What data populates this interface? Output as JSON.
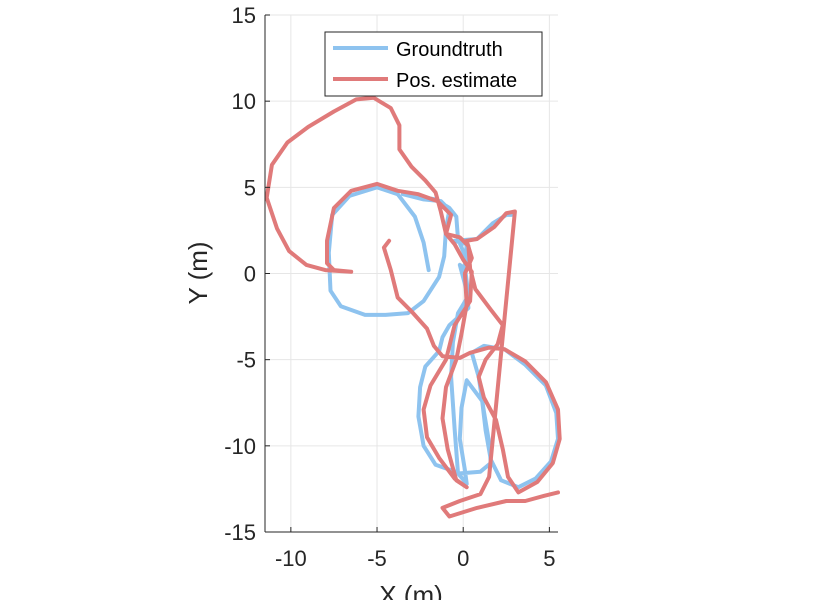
{
  "chart_data": {
    "type": "line",
    "xlabel": "X (m)",
    "ylabel": "Y (m)",
    "xlim": [
      -11.5,
      5.5
    ],
    "ylim": [
      -15,
      15
    ],
    "xticks": [
      -10,
      -5,
      0,
      5
    ],
    "yticks": [
      -15,
      -10,
      -5,
      0,
      5,
      10,
      15
    ],
    "grid": true,
    "legend_position": "top-right",
    "series": [
      {
        "name": "Groundtruth",
        "color": "#8ec3ef",
        "points": [
          [
            -2.0,
            0.2
          ],
          [
            -2.3,
            1.8
          ],
          [
            -2.8,
            3.3
          ],
          [
            -3.8,
            4.6
          ],
          [
            -5.0,
            5.0
          ],
          [
            -6.6,
            4.5
          ],
          [
            -7.6,
            3.4
          ],
          [
            -7.8,
            1.2
          ],
          [
            -7.7,
            -1.0
          ],
          [
            -7.1,
            -1.9
          ],
          [
            -5.7,
            -2.4
          ],
          [
            -4.5,
            -2.4
          ],
          [
            -3.2,
            -2.3
          ],
          [
            -2.3,
            -1.6
          ],
          [
            -1.4,
            -0.2
          ],
          [
            -1.1,
            1.0
          ],
          [
            -1.0,
            2.6
          ],
          [
            -0.8,
            3.7
          ],
          [
            -1.3,
            4.2
          ],
          [
            -2.3,
            4.3
          ],
          [
            -3.5,
            4.6
          ],
          [
            -1.6,
            4.3
          ],
          [
            -0.8,
            3.8
          ],
          [
            -0.4,
            3.3
          ],
          [
            -0.3,
            2.0
          ],
          [
            0.2,
            0.8
          ],
          [
            0.1,
            0.3
          ],
          [
            -0.2,
            0.5
          ],
          [
            0.2,
            -1.0
          ],
          [
            0.3,
            -2.0
          ],
          [
            -0.8,
            -3.0
          ],
          [
            -1.2,
            -3.7
          ],
          [
            -1.4,
            -4.5
          ],
          [
            -2.2,
            -5.4
          ],
          [
            -2.5,
            -6.6
          ],
          [
            -2.6,
            -8.3
          ],
          [
            -2.3,
            -10.0
          ],
          [
            -1.6,
            -11.1
          ],
          [
            -0.2,
            -11.6
          ],
          [
            1.0,
            -11.5
          ],
          [
            1.6,
            -11.0
          ],
          [
            1.5,
            -9.8
          ],
          [
            1.2,
            -8.0
          ],
          [
            0.9,
            -6.0
          ],
          [
            0.5,
            -4.6
          ],
          [
            1.2,
            -4.2
          ],
          [
            2.4,
            -4.4
          ],
          [
            3.6,
            -5.3
          ],
          [
            4.8,
            -6.5
          ],
          [
            5.4,
            -8.1
          ],
          [
            5.5,
            -9.6
          ],
          [
            5.1,
            -10.9
          ],
          [
            4.2,
            -11.9
          ],
          [
            3.2,
            -12.4
          ],
          [
            2.2,
            -12.0
          ],
          [
            1.6,
            -10.8
          ],
          [
            1.3,
            -9.1
          ],
          [
            1.1,
            -7.4
          ],
          [
            0.2,
            -6.2
          ],
          [
            -0.1,
            -7.8
          ],
          [
            -0.2,
            -9.6
          ],
          [
            0.1,
            -11.4
          ],
          [
            0.2,
            -12.2
          ],
          [
            -0.3,
            -11.6
          ],
          [
            -0.5,
            -9.0
          ],
          [
            -0.7,
            -6.0
          ],
          [
            -0.6,
            -4.0
          ],
          [
            -0.3,
            -2.3
          ],
          [
            0.3,
            -1.3
          ],
          [
            0.1,
            0.4
          ],
          [
            0.2,
            1.7
          ],
          [
            -0.5,
            1.9
          ],
          [
            0.8,
            2.0
          ],
          [
            1.7,
            2.9
          ],
          [
            2.5,
            3.4
          ],
          [
            2.8,
            3.4
          ]
        ]
      },
      {
        "name": "Pos. estimate",
        "color": "#e07a7a",
        "points": [
          [
            -4.3,
            1.9
          ],
          [
            -4.6,
            1.5
          ],
          [
            -4.2,
            0.2
          ],
          [
            -3.8,
            -1.4
          ],
          [
            -3.0,
            -2.2
          ],
          [
            -2.1,
            -3.2
          ],
          [
            -1.7,
            -4.2
          ],
          [
            -1.2,
            -4.8
          ],
          [
            -0.2,
            -4.9
          ],
          [
            0.4,
            -4.6
          ],
          [
            1.5,
            -4.3
          ],
          [
            2.4,
            -4.4
          ],
          [
            3.6,
            -5.1
          ],
          [
            4.8,
            -6.3
          ],
          [
            5.5,
            -7.9
          ],
          [
            5.6,
            -9.6
          ],
          [
            5.2,
            -11.0
          ],
          [
            4.3,
            -12.1
          ],
          [
            3.2,
            -12.7
          ],
          [
            2.6,
            -11.8
          ],
          [
            2.3,
            -10.2
          ],
          [
            1.9,
            -8.5
          ],
          [
            1.2,
            -7.2
          ],
          [
            0.9,
            -6.0
          ],
          [
            1.3,
            -5.0
          ],
          [
            2.0,
            -4.1
          ],
          [
            2.3,
            -3.0
          ],
          [
            1.6,
            -2.1
          ],
          [
            0.7,
            -0.9
          ],
          [
            0.4,
            0.3
          ],
          [
            0.3,
            1.6
          ],
          [
            -0.2,
            2.1
          ],
          [
            -1.0,
            2.3
          ],
          [
            -0.7,
            3.4
          ],
          [
            -1.5,
            4.2
          ],
          [
            -2.6,
            4.6
          ],
          [
            -3.8,
            4.8
          ],
          [
            -5.0,
            5.2
          ],
          [
            -6.5,
            4.8
          ],
          [
            -7.5,
            3.8
          ],
          [
            -7.9,
            1.9
          ],
          [
            -7.9,
            0.6
          ],
          [
            -7.5,
            0.2
          ],
          [
            -6.5,
            0.1
          ],
          [
            -8.0,
            0.2
          ],
          [
            -9.1,
            0.5
          ],
          [
            -10.1,
            1.3
          ],
          [
            -10.8,
            2.6
          ],
          [
            -11.4,
            4.4
          ],
          [
            -11.1,
            6.3
          ],
          [
            -10.2,
            7.6
          ],
          [
            -9.0,
            8.5
          ],
          [
            -7.5,
            9.4
          ],
          [
            -6.2,
            10.1
          ],
          [
            -5.2,
            10.2
          ],
          [
            -4.2,
            9.6
          ],
          [
            -3.7,
            8.6
          ],
          [
            -3.7,
            7.2
          ],
          [
            -3.0,
            6.2
          ],
          [
            -2.2,
            5.4
          ],
          [
            -1.6,
            4.7
          ],
          [
            -1.3,
            3.6
          ],
          [
            -1.0,
            2.3
          ],
          [
            -0.5,
            1.7
          ],
          [
            0.0,
            0.8
          ],
          [
            0.5,
            0.1
          ],
          [
            0.4,
            -1.6
          ],
          [
            -0.5,
            -3.0
          ],
          [
            -1.0,
            -5.0
          ],
          [
            -1.9,
            -6.5
          ],
          [
            -2.3,
            -7.9
          ],
          [
            -2.1,
            -9.5
          ],
          [
            -1.4,
            -10.7
          ],
          [
            -0.5,
            -11.9
          ],
          [
            0.2,
            -12.4
          ],
          [
            -0.4,
            -12.0
          ],
          [
            -0.9,
            -10.2
          ],
          [
            -1.2,
            -8.4
          ],
          [
            -1.0,
            -6.6
          ],
          [
            -0.4,
            -5.0
          ],
          [
            -0.1,
            -3.5
          ],
          [
            0.2,
            -1.8
          ],
          [
            0.1,
            0.0
          ],
          [
            0.5,
            0.9
          ],
          [
            0.2,
            1.9
          ],
          [
            0.8,
            2.0
          ],
          [
            1.8,
            2.7
          ],
          [
            2.5,
            3.5
          ],
          [
            3.0,
            3.6
          ],
          [
            1.5,
            -11.8
          ],
          [
            1.0,
            -12.8
          ],
          [
            -0.2,
            -13.2
          ],
          [
            -1.2,
            -13.6
          ],
          [
            -0.8,
            -14.1
          ],
          [
            0.8,
            -13.6
          ],
          [
            2.5,
            -13.2
          ],
          [
            3.6,
            -13.2
          ],
          [
            4.7,
            -12.9
          ],
          [
            5.5,
            -12.7
          ]
        ]
      }
    ]
  }
}
